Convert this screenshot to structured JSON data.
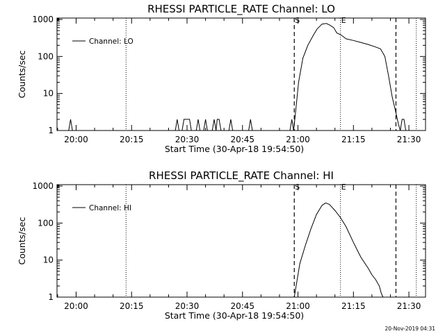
{
  "footer": "20-Nov-2019 04:31",
  "chart_data": [
    {
      "type": "line",
      "title": "RHESSI PARTICLE_RATE Channel: LO",
      "xlabel": "Start Time (30-Apr-18 19:54:50)",
      "ylabel": "Counts/sec",
      "yscale": "log",
      "ylim": [
        1,
        1000
      ],
      "xlim": [
        "19:54:50",
        "21:34:30"
      ],
      "xticks": [
        "20:00",
        "20:15",
        "20:30",
        "20:45",
        "21:00",
        "21:15",
        "21:30"
      ],
      "yticks": [
        "1",
        "10",
        "100",
        "1000"
      ],
      "legend": "Channel: LO",
      "legend_position": "top-left",
      "dotted_lines": [
        "20:13:30",
        "21:11:30",
        "21:32:00"
      ],
      "dashed_lines": [
        "20:59:00",
        "21:26:30"
      ],
      "markers": [
        {
          "label": "S",
          "at": "20:59:00"
        },
        {
          "label": "E",
          "at": "21:11:30"
        }
      ],
      "series": [
        {
          "x": [
            "19:54:50",
            "19:58:00",
            "19:58:30",
            "19:59:00",
            "20:00:00",
            "20:26:50",
            "20:27:20",
            "20:27:50",
            "20:28:40",
            "20:29:10",
            "20:29:40",
            "20:30:40",
            "20:31:10",
            "20:31:40",
            "20:32:30",
            "20:33:00",
            "20:33:30",
            "20:34:30",
            "20:35:00",
            "20:35:30",
            "20:36:50",
            "20:37:20",
            "20:37:50",
            "20:38:10",
            "20:38:40",
            "20:39:10",
            "20:41:20",
            "20:41:50",
            "20:42:20",
            "20:46:40",
            "20:47:10",
            "20:47:40",
            "20:57:50",
            "20:58:20",
            "20:58:50",
            "20:59:20",
            "21:00:10",
            "21:01:20",
            "21:02:40",
            "21:04:00",
            "21:05:10",
            "21:06:30",
            "21:07:40",
            "21:08:40",
            "21:09:40",
            "21:10:30",
            "21:11:40",
            "21:13:00",
            "21:15:00",
            "21:17:00",
            "21:19:00",
            "21:21:00",
            "21:22:20",
            "21:23:30",
            "21:24:30",
            "21:25:30",
            "21:26:30",
            "21:27:10",
            "21:27:40",
            "21:28:10",
            "21:28:40",
            "21:29:10",
            "21:29:40",
            "21:34:00"
          ],
          "values": [
            1,
            1,
            2,
            1,
            1,
            1,
            2,
            1,
            1,
            2,
            2,
            2,
            1,
            1,
            1,
            2,
            1,
            1,
            2,
            1,
            1,
            2,
            1,
            2,
            2,
            1,
            1,
            2,
            1,
            1,
            2,
            1,
            1,
            2,
            1,
            3,
            20,
            90,
            200,
            350,
            550,
            750,
            780,
            700,
            600,
            430,
            380,
            300,
            270,
            240,
            210,
            180,
            160,
            100,
            30,
            8,
            3,
            1.5,
            1,
            2,
            2,
            1,
            1,
            1
          ]
        }
      ]
    },
    {
      "type": "line",
      "title": "RHESSI PARTICLE_RATE Channel: HI",
      "xlabel": "Start Time (30-Apr-18 19:54:50)",
      "ylabel": "Counts/sec",
      "yscale": "log",
      "ylim": [
        1,
        1000
      ],
      "xlim": [
        "19:54:50",
        "21:34:30"
      ],
      "xticks": [
        "20:00",
        "20:15",
        "20:30",
        "20:45",
        "21:00",
        "21:15",
        "21:30"
      ],
      "yticks": [
        "1",
        "10",
        "100",
        "1000"
      ],
      "legend": "Channel: HI",
      "legend_position": "top-left",
      "dotted_lines": [
        "20:13:30",
        "21:11:30",
        "21:32:00"
      ],
      "dashed_lines": [
        "20:59:00",
        "21:26:30"
      ],
      "markers": [
        {
          "label": "S",
          "at": "20:59:00"
        },
        {
          "label": "E",
          "at": "21:11:30"
        }
      ],
      "series": [
        {
          "x": [
            "20:59:00",
            "20:59:30",
            "21:00:30",
            "21:02:00",
            "21:03:30",
            "21:05:00",
            "21:06:30",
            "21:07:30",
            "21:08:30",
            "21:10:00",
            "21:11:30",
            "21:13:00",
            "21:15:00",
            "21:17:00",
            "21:19:00",
            "21:20:00",
            "21:21:00",
            "21:22:00",
            "21:22:30",
            "21:23:00"
          ],
          "values": [
            1,
            2,
            8,
            25,
            70,
            170,
            300,
            350,
            320,
            220,
            140,
            80,
            30,
            12,
            6,
            4,
            3,
            2,
            1.3,
            1
          ]
        }
      ]
    }
  ]
}
